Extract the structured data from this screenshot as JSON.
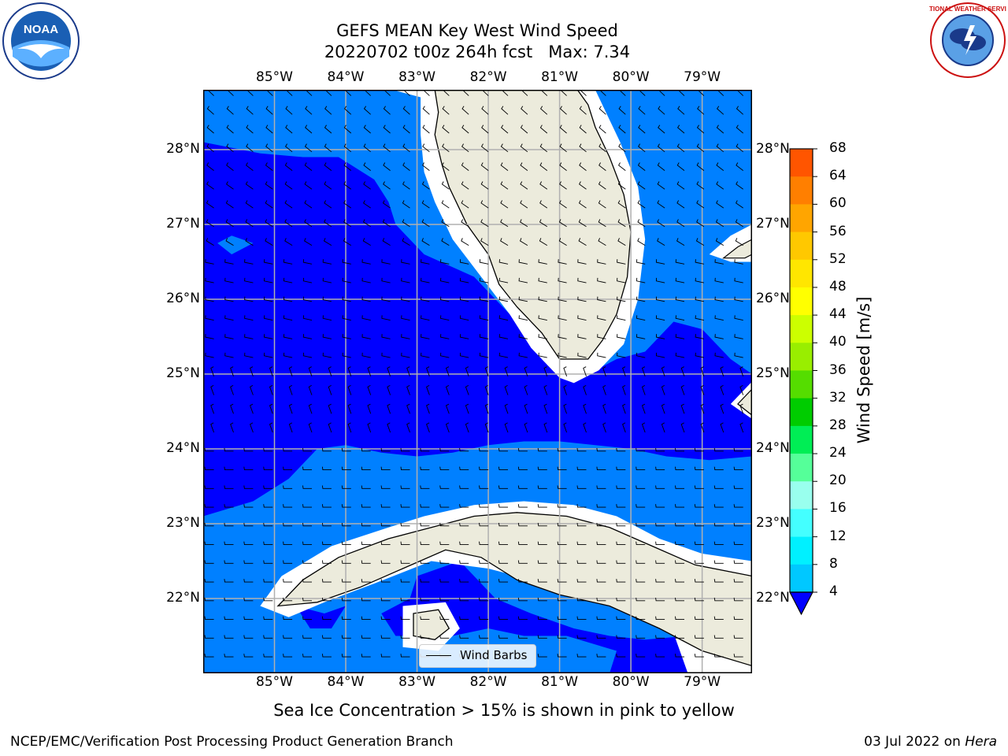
{
  "title": {
    "line1": "GEFS MEAN Key West Wind Speed",
    "line2": "20220702 t00z 264h fcst   Max: 7.34"
  },
  "map": {
    "lon_labels": [
      "85°W",
      "84°W",
      "83°W",
      "82°W",
      "81°W",
      "80°W",
      "79°W"
    ],
    "lat_labels": [
      "28°N",
      "27°N",
      "26°N",
      "25°N",
      "24°N",
      "23°N",
      "22°N"
    ],
    "lon_values": [
      -85,
      -84,
      -83,
      -82,
      -81,
      -80,
      -79
    ],
    "lat_values": [
      28,
      27,
      26,
      25,
      24,
      23,
      22
    ],
    "extent": {
      "lon_min": -86.0,
      "lon_max": -78.3,
      "lat_min": 21.0,
      "lat_max": 28.8
    },
    "colors": {
      "land": "#ecebdc",
      "shade_4_8": "#0080ff",
      "shade_0_4": "#0000ff",
      "grid": "#b0b0b0"
    },
    "legend": {
      "label": "Wind Barbs"
    }
  },
  "colorbar": {
    "title": "Wind Speed [m/s]",
    "ticks": [
      "68",
      "64",
      "60",
      "56",
      "52",
      "48",
      "44",
      "40",
      "36",
      "32",
      "28",
      "24",
      "20",
      "16",
      "12",
      "8",
      "4"
    ],
    "colors": [
      "#ff0000",
      "#ff2a00",
      "#ff5500",
      "#ff7f00",
      "#ffa500",
      "#ffc800",
      "#ffe600",
      "#ffff00",
      "#ccff00",
      "#99ee00",
      "#55dd00",
      "#00cc00",
      "#00ee55",
      "#55ff99",
      "#99ffee",
      "#44ffff",
      "#00f0ff",
      "#00c8ff",
      "#0080ff"
    ]
  },
  "logos": {
    "left": "NOAA",
    "right": "NATIONAL WEATHER SERVICE"
  },
  "footer": {
    "note": "Sea Ice Concentration > 15% is shown in pink to yellow",
    "credit": "NCEP/EMC/Verification Post Processing Product Generation Branch",
    "date": "03 Jul 2022 on ",
    "machine": "Hera"
  }
}
